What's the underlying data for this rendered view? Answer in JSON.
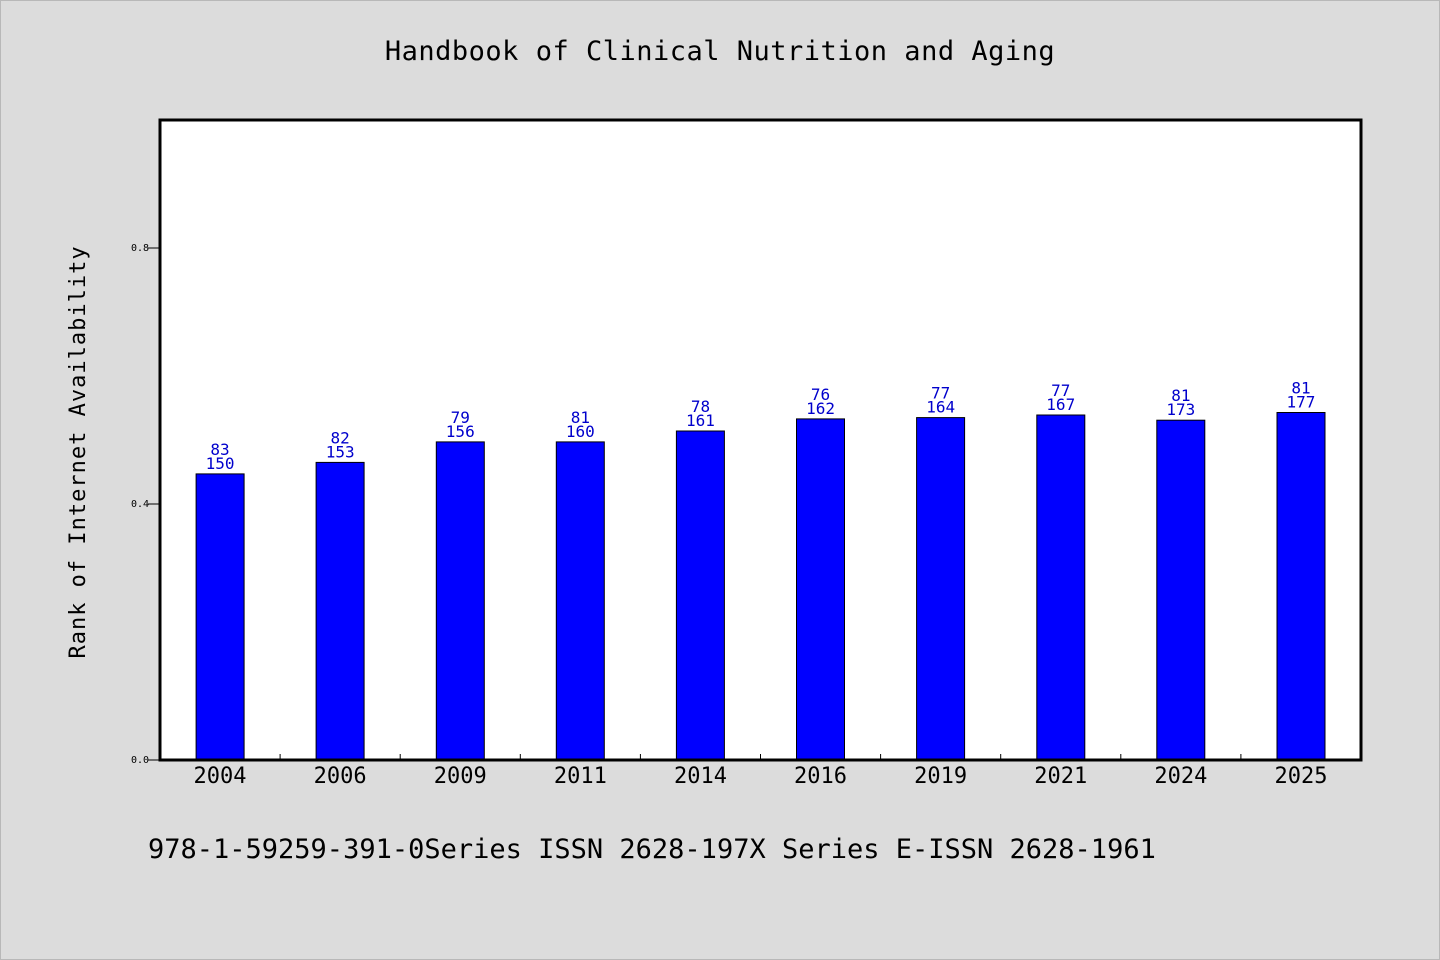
{
  "header": {
    "title": "Handbook of Clinical Nutrition and Aging"
  },
  "footer": {
    "note": "978-1-59259-391-0Series ISSN 2628-197X Series E-ISSN 2628-1961"
  },
  "chart_data": {
    "type": "bar",
    "title": "Handbook of Clinical Nutrition and Aging",
    "xlabel": "",
    "ylabel": "Rank of Internet Availability",
    "ylim": [
      0,
      1.0
    ],
    "yticks": [
      0.0,
      0.4,
      0.8
    ],
    "ytick_labels": [
      "0.0",
      "0.4",
      "0.8"
    ],
    "grid": false,
    "categories": [
      "2004",
      "2006",
      "2009",
      "2011",
      "2014",
      "2016",
      "2019",
      "2021",
      "2024",
      "2025"
    ],
    "values": [
      0.447,
      0.465,
      0.497,
      0.497,
      0.514,
      0.533,
      0.535,
      0.539,
      0.531,
      0.543
    ],
    "label_top": [
      "83",
      "82",
      "79",
      "81",
      "78",
      "76",
      "77",
      "77",
      "81",
      "81"
    ],
    "label_bottom": [
      "150",
      "153",
      "156",
      "160",
      "161",
      "162",
      "164",
      "167",
      "173",
      "177"
    ],
    "colors": {
      "bar": "#0000ff",
      "bar_edge": "#000000",
      "data_label": "#0000cc",
      "plot_bg": "#ffffff",
      "page_bg": "#dcdcdc"
    }
  }
}
